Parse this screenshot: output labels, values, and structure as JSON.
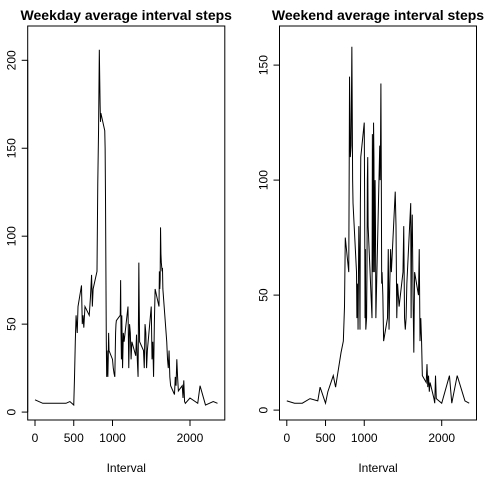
{
  "chart_data": [
    {
      "type": "line",
      "title": "Weekday average interval steps",
      "xlabel": "Interval",
      "xlim": [
        -94.2,
        2449.2
      ],
      "xticks": [
        0,
        500,
        1000,
        2000
      ],
      "ylim": [
        -4.5,
        219.5
      ],
      "yticks": [
        0,
        50,
        100,
        150,
        200
      ],
      "series": [
        {
          "color": "#000000",
          "x": [
            0,
            100,
            200,
            300,
            400,
            450,
            500,
            510,
            520,
            530,
            545,
            555,
            600,
            610,
            620,
            630,
            645,
            700,
            715,
            730,
            740,
            750,
            800,
            810,
            820,
            830,
            835,
            840,
            845,
            850,
            900,
            905,
            910,
            915,
            920,
            925,
            930,
            935,
            940,
            945,
            950,
            955,
            1000,
            1010,
            1020,
            1030,
            1040,
            1045,
            1050,
            1100,
            1105,
            1110,
            1115,
            1120,
            1125,
            1130,
            1140,
            1150,
            1200,
            1210,
            1220,
            1230,
            1240,
            1250,
            1300,
            1310,
            1320,
            1330,
            1340,
            1345,
            1350,
            1400,
            1410,
            1420,
            1430,
            1440,
            1450,
            1500,
            1510,
            1520,
            1530,
            1540,
            1550,
            1600,
            1605,
            1610,
            1615,
            1620,
            1625,
            1630,
            1640,
            1645,
            1650,
            1700,
            1710,
            1720,
            1730,
            1740,
            1750,
            1800,
            1810,
            1820,
            1830,
            1840,
            1850,
            1900,
            1910,
            1920,
            1930,
            1940,
            2000,
            2100,
            2130,
            2200,
            2300,
            2355
          ],
          "values": [
            7,
            5,
            5,
            5,
            5,
            6,
            4,
            20,
            40,
            55,
            45,
            60,
            72,
            50,
            55,
            48,
            60,
            55,
            65,
            78,
            60,
            70,
            80,
            130,
            160,
            206,
            190,
            175,
            165,
            170,
            160,
            150,
            120,
            80,
            40,
            20,
            35,
            25,
            20,
            30,
            45,
            35,
            30,
            25,
            22,
            20,
            45,
            50,
            52,
            55,
            75,
            45,
            30,
            55,
            40,
            25,
            45,
            40,
            60,
            25,
            50,
            45,
            30,
            40,
            32,
            44,
            30,
            20,
            85,
            60,
            40,
            35,
            25,
            50,
            45,
            25,
            35,
            60,
            30,
            40,
            20,
            50,
            70,
            60,
            80,
            70,
            75,
            105,
            90,
            85,
            80,
            82,
            70,
            40,
            30,
            25,
            35,
            20,
            15,
            10,
            20,
            15,
            30,
            20,
            12,
            15,
            8,
            18,
            6,
            5,
            8,
            5,
            15,
            4,
            6,
            5
          ]
        }
      ]
    },
    {
      "type": "line",
      "title": "Weekend average interval steps",
      "xlabel": "Interval",
      "xlim": [
        -94.2,
        2449.2
      ],
      "xticks": [
        0,
        500,
        1000,
        2000
      ],
      "ylim": [
        -4.3,
        167
      ],
      "yticks": [
        0,
        50,
        100,
        150
      ],
      "series": [
        {
          "color": "#000000",
          "x": [
            0,
            100,
            200,
            300,
            400,
            430,
            500,
            530,
            600,
            630,
            700,
            730,
            745,
            755,
            800,
            805,
            810,
            815,
            820,
            830,
            840,
            845,
            850,
            855,
            900,
            905,
            915,
            920,
            930,
            940,
            945,
            950,
            955,
            1000,
            1005,
            1010,
            1015,
            1020,
            1030,
            1035,
            1040,
            1045,
            1050,
            1100,
            1105,
            1110,
            1115,
            1120,
            1125,
            1130,
            1140,
            1145,
            1150,
            1200,
            1205,
            1210,
            1215,
            1220,
            1225,
            1230,
            1240,
            1250,
            1300,
            1310,
            1320,
            1330,
            1340,
            1350,
            1400,
            1410,
            1420,
            1430,
            1440,
            1450,
            1500,
            1510,
            1520,
            1530,
            1540,
            1550,
            1600,
            1605,
            1610,
            1620,
            1630,
            1640,
            1650,
            1700,
            1710,
            1720,
            1730,
            1740,
            1750,
            1800,
            1810,
            1820,
            1830,
            1840,
            1850,
            1900,
            1910,
            1920,
            1930,
            2000,
            2100,
            2130,
            2200,
            2300,
            2355
          ],
          "values": [
            4,
            3,
            3,
            5,
            4,
            10,
            3,
            8,
            15,
            10,
            25,
            30,
            45,
            75,
            60,
            100,
            145,
            130,
            110,
            115,
            158,
            130,
            100,
            90,
            60,
            40,
            55,
            35,
            80,
            60,
            35,
            90,
            110,
            125,
            90,
            40,
            70,
            35,
            40,
            60,
            100,
            110,
            80,
            40,
            120,
            90,
            60,
            125,
            110,
            60,
            100,
            80,
            40,
            115,
            100,
            115,
            142,
            105,
            55,
            60,
            50,
            30,
            40,
            70,
            35,
            55,
            70,
            60,
            95,
            80,
            40,
            55,
            50,
            45,
            60,
            80,
            40,
            35,
            40,
            55,
            90,
            40,
            70,
            85,
            50,
            25,
            60,
            50,
            70,
            30,
            40,
            30,
            15,
            12,
            20,
            10,
            15,
            8,
            12,
            5,
            3,
            15,
            5,
            3,
            15,
            3,
            15,
            4,
            3
          ]
        }
      ]
    }
  ]
}
